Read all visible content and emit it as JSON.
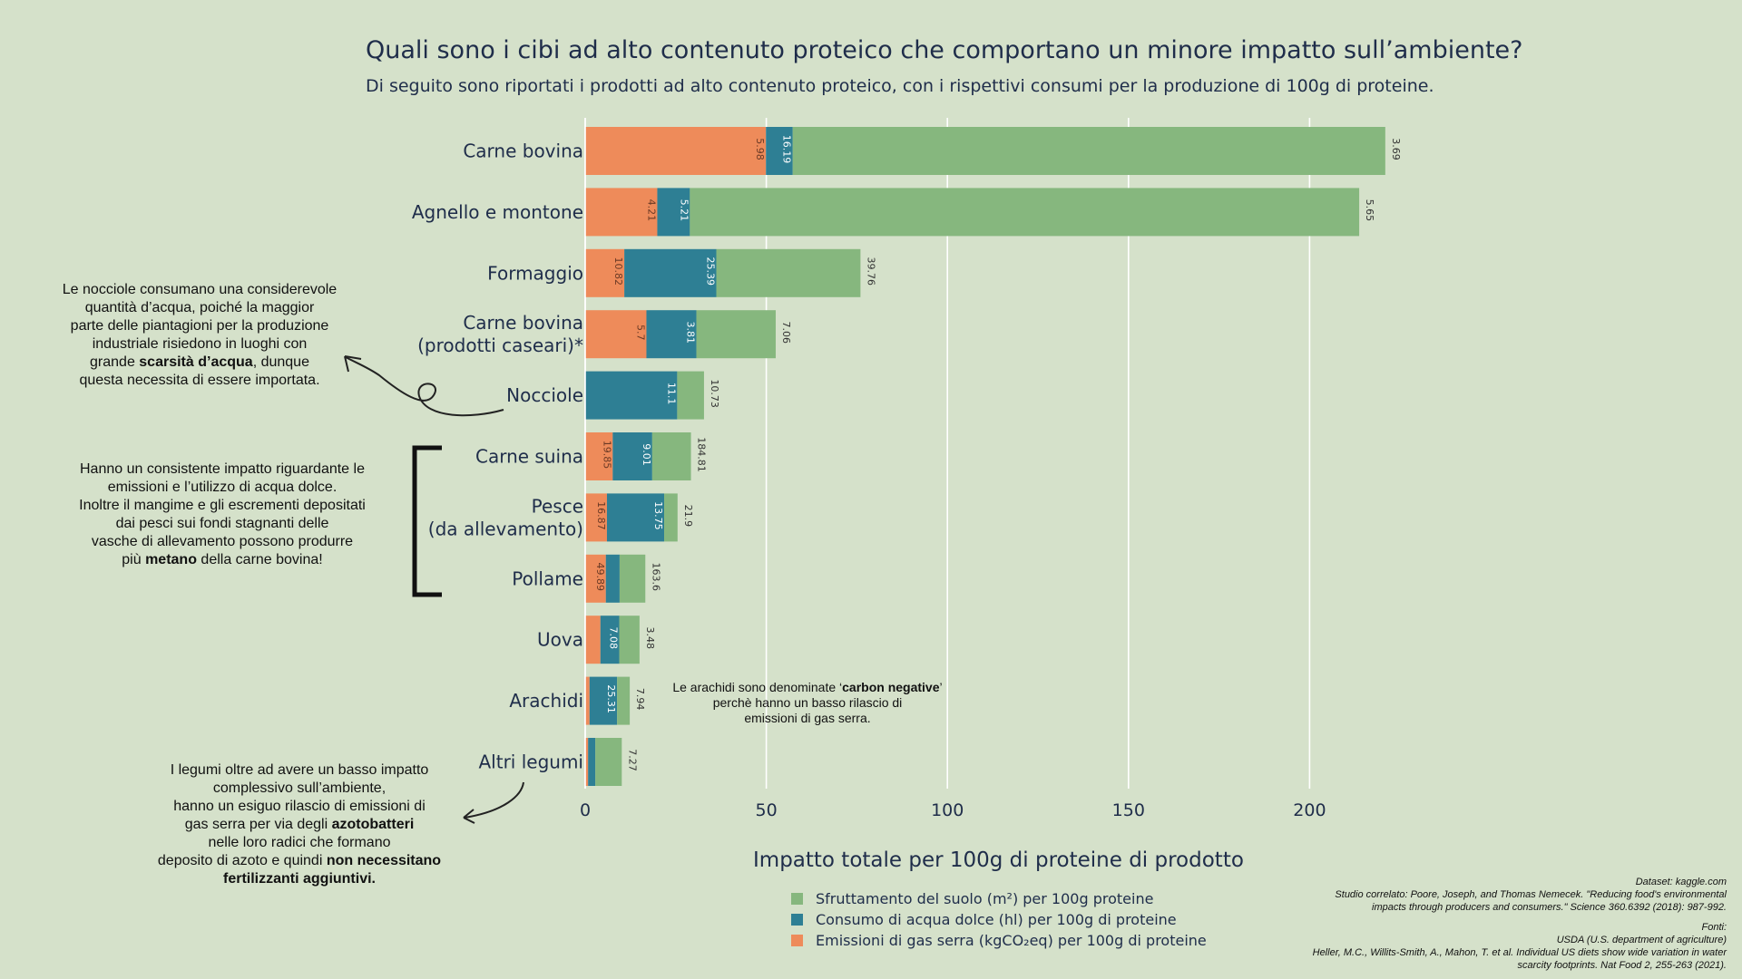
{
  "title": "Quali sono i cibi ad alto contenuto proteico che comportano un minore impatto sull’ambiente?",
  "subtitle": "Di seguito sono riportati i prodotti ad alto contenuto proteico, con i rispettivi consumi per la produzione di 100g di proteine.",
  "chart_data": {
    "type": "bar",
    "orientation": "horizontal",
    "stacked": true,
    "xlabel": "Impatto totale per 100g di proteine di prodotto",
    "xlim": [
      0,
      240
    ],
    "xticks": [
      0,
      50,
      100,
      150,
      200
    ],
    "grid": true,
    "legend_position": "bottom",
    "categories": [
      "Carne bovina",
      "Agnello e montone",
      "Formaggio",
      "Carne bovina\n(prodotti caseari)*",
      "Nocciole",
      "Carne suina",
      "Pesce\n(da allevamento)",
      "Pollame",
      "Uova",
      "Arachidi",
      "Altri legumi"
    ],
    "series": [
      {
        "name": "Emissioni di gas serra (kgCO₂eq) per 100g di proteine",
        "color": "#ee8b5a",
        "values": [
          49.9,
          19.9,
          10.8,
          16.9,
          0.0,
          7.6,
          6.0,
          5.7,
          4.2,
          1.2,
          0.8
        ]
      },
      {
        "name": "Consumo di acqua dolce (hl) per 100g di proteine",
        "color": "#2e7f94",
        "values": [
          7.4,
          9.0,
          25.4,
          13.8,
          25.4,
          10.9,
          15.8,
          3.8,
          5.2,
          7.6,
          2.0
        ]
      },
      {
        "name": "Sfruttamento del suolo (m²) per 100g proteine",
        "color": "#86b77e",
        "values": [
          163.6,
          184.8,
          39.8,
          21.9,
          7.4,
          10.7,
          3.7,
          7.1,
          5.6,
          3.5,
          7.3
        ]
      }
    ],
    "bar_labels": [
      [
        "5.98",
        "16.19",
        "3.69"
      ],
      [
        "4.21",
        "5.21",
        "5.65"
      ],
      [
        "10.82",
        "25.39",
        "39.76"
      ],
      [
        "5.7",
        "3.81",
        "7.06"
      ],
      [
        "",
        "11.1",
        "10.73"
      ],
      [
        "19.85",
        "9.01",
        "184.81"
      ],
      [
        "16.87",
        "13.75",
        "21.9"
      ],
      [
        "49.89",
        "",
        "163.6"
      ],
      [
        "",
        "7.08",
        "3.48"
      ],
      [
        "",
        "25.31",
        "7.94"
      ],
      [
        "",
        "",
        "7.27"
      ]
    ]
  },
  "notes": {
    "nocciole": [
      "Le nocciole consumano una considerevole",
      "quantità d’acqua, poiché la maggior",
      "parte delle piantagioni per la produzione",
      "industriale risiedono in luoghi con",
      "grande ",
      "scarsità d’acqua",
      ", dunque",
      "questa necessita di essere importata."
    ],
    "pesce": [
      "Hanno un consistente impatto riguardante le",
      "emissioni e l’utilizzo di acqua dolce.",
      "Inoltre il mangime e gli escrementi depositati",
      "dai pesci sui fondi stagnanti delle",
      "vasche di allevamento possono produrre",
      "più ",
      "metano",
      " della carne bovina!"
    ],
    "arachidi": [
      "Le arachidi sono denominate ‘",
      "carbon negative",
      "’",
      "perchè hanno un basso rilascio di",
      "emissioni di gas serra."
    ],
    "legumi": [
      "I legumi oltre ad avere un basso impatto",
      "complessivo sull’ambiente,",
      "hanno un esiguo rilascio di emissioni di",
      "gas serra per via degli ",
      "azotobatteri",
      "nelle loro radici che formano",
      "deposito di azoto e quindi ",
      "non necessitano",
      "fertilizzanti aggiuntivi."
    ]
  },
  "sources": {
    "dataset": "Dataset: kaggle.com",
    "study1": "Studio correlato: Poore, Joseph, and Thomas Nemecek. \"Reducing food's environmental",
    "study2": "impacts through producers and consumers.\" Science 360.6392 (2018): 987-992.",
    "fonti": "Fonti:",
    "usda": "USDA (U.S. department of agriculture)",
    "heller1": "Heller, M.C., Willits-Smith, A., Mahon, T. et al. Individual US diets show wide variation in water",
    "heller2": "scarcity footprints. Nat Food 2, 255-263 (2021)."
  }
}
